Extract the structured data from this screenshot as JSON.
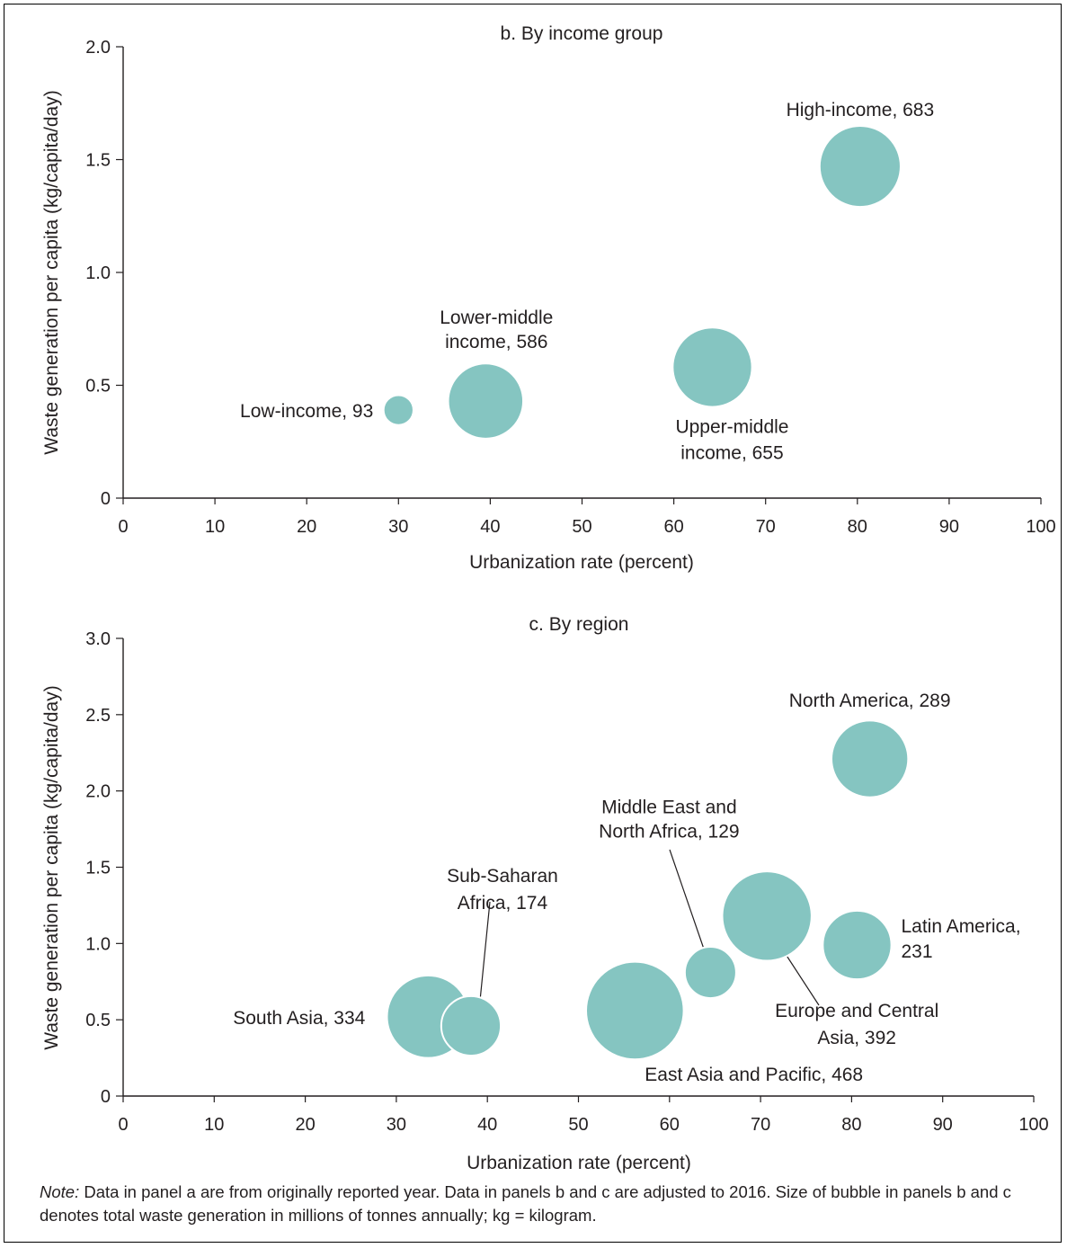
{
  "bubble_color": "#85c5c1",
  "text_color": "#231f20",
  "note": {
    "label": "Note:",
    "text": "Data in panel a are from originally reported year. Data in panels b and c are adjusted to 2016. Size of bubble in panels b and c denotes total waste generation in millions of tonnes annually; kg = kilogram."
  },
  "chart_data": [
    {
      "type": "scatter",
      "title": "b. By income group",
      "xlabel": "Urbanization rate (percent)",
      "ylabel": "Waste generation per capita (kg/capita/day)",
      "xlim": [
        0,
        100
      ],
      "ylim": [
        0,
        2.0
      ],
      "xticks": [
        0,
        10,
        20,
        30,
        40,
        50,
        60,
        70,
        80,
        90,
        100
      ],
      "yticks": [
        0,
        0.5,
        1.0,
        1.5,
        2.0
      ],
      "ytick_labels": [
        "0",
        "0.5",
        "1.0",
        "1.5",
        "2.0"
      ],
      "grid": false,
      "size_unit": "millions of tonnes annually",
      "points": [
        {
          "label": "Low-income, 93",
          "x": 30,
          "y": 0.39,
          "size": 93
        },
        {
          "label": "Lower-middle income, 586",
          "label_lines": [
            "Lower-middle",
            "income, 586"
          ],
          "x": 39.5,
          "y": 0.43,
          "size": 586
        },
        {
          "label": "Upper-middle income, 655",
          "label_lines": [
            "Upper-middle",
            "income, 655"
          ],
          "x": 64.2,
          "y": 0.58,
          "size": 655
        },
        {
          "label": "High-income, 683",
          "x": 80.3,
          "y": 1.47,
          "size": 683
        }
      ]
    },
    {
      "type": "scatter",
      "title": "c. By region",
      "xlabel": "Urbanization rate (percent)",
      "ylabel": "Waste generation per capita (kg/capita/day)",
      "xlim": [
        0,
        100
      ],
      "ylim": [
        0,
        3.0
      ],
      "xticks": [
        0,
        10,
        20,
        30,
        40,
        50,
        60,
        70,
        80,
        90,
        100
      ],
      "yticks": [
        0,
        0.5,
        1.0,
        1.5,
        2.0,
        2.5,
        3.0
      ],
      "ytick_labels": [
        "0",
        "0.5",
        "1.0",
        "1.5",
        "2.0",
        "2.5",
        "3.0"
      ],
      "grid": false,
      "size_unit": "millions of tonnes annually",
      "points": [
        {
          "label": "South Asia, 334",
          "x": 33.5,
          "y": 0.52,
          "size": 334
        },
        {
          "label": "Sub-Saharan Africa, 174",
          "label_lines": [
            "Sub-Saharan",
            "Africa, 174"
          ],
          "x": 38.2,
          "y": 0.46,
          "size": 174
        },
        {
          "label": "East Asia and Pacific, 468",
          "x": 56.2,
          "y": 0.56,
          "size": 468
        },
        {
          "label": "Middle East and North Africa, 129",
          "label_lines": [
            "Middle East and",
            "North Africa, 129"
          ],
          "x": 64.5,
          "y": 0.81,
          "size": 129
        },
        {
          "label": "Europe and Central Asia, 392",
          "label_lines": [
            "Europe and Central",
            "Asia, 392"
          ],
          "x": 70.7,
          "y": 1.18,
          "size": 392
        },
        {
          "label": "Latin America, 231",
          "label_lines": [
            "Latin America,",
            "231"
          ],
          "x": 80.6,
          "y": 0.99,
          "size": 231
        },
        {
          "label": "North America, 289",
          "x": 82.0,
          "y": 2.21,
          "size": 289
        }
      ]
    }
  ]
}
